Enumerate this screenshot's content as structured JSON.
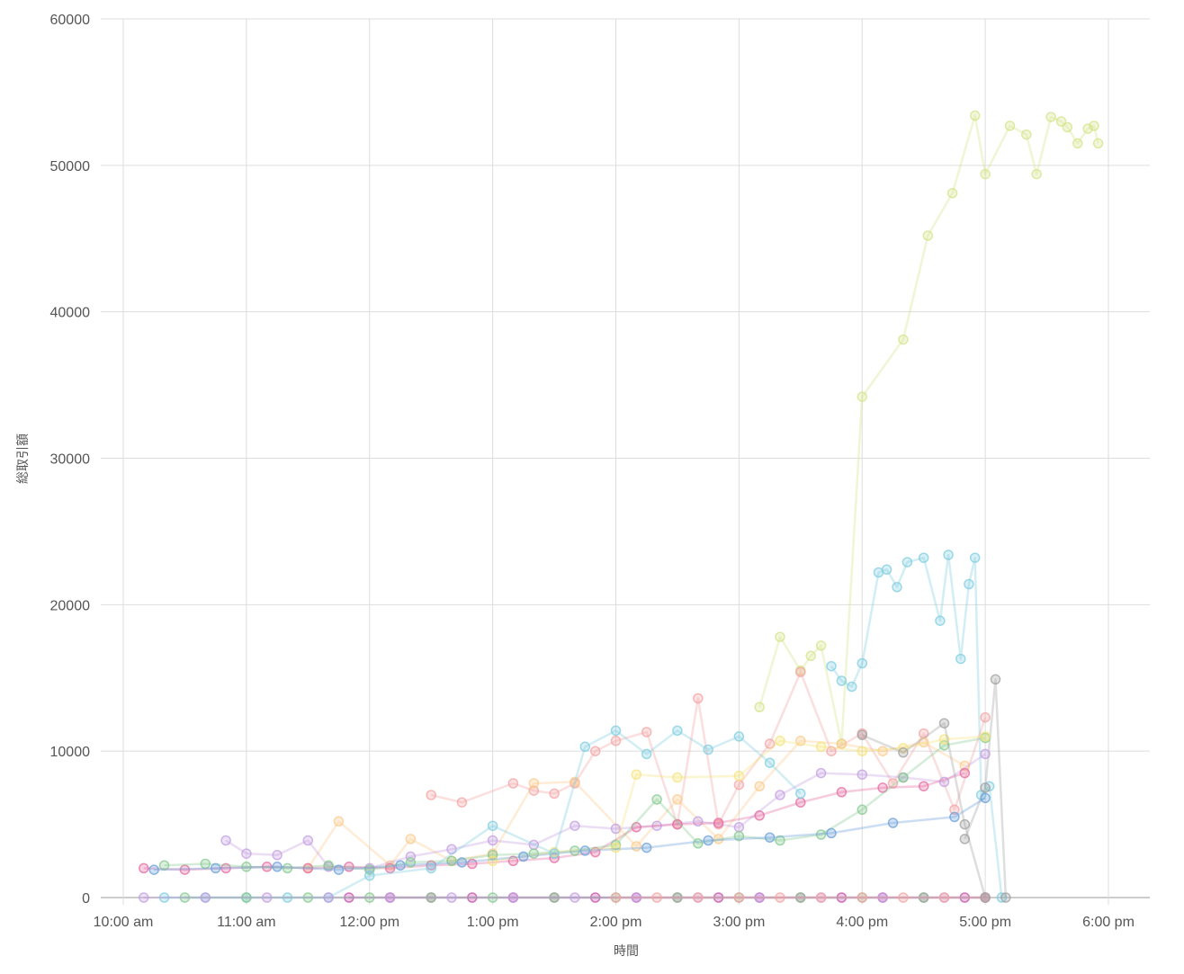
{
  "chart_data": {
    "type": "line",
    "title": "",
    "xlabel": "時間",
    "ylabel": "総取引額",
    "x_is_time_of_day": true,
    "xlim": [
      "10:00",
      "18:00"
    ],
    "ylim": [
      0,
      60000
    ],
    "y_ticks": [
      0,
      10000,
      20000,
      30000,
      40000,
      50000,
      60000
    ],
    "y_tick_labels": [
      "0",
      "10000",
      "20000",
      "30000",
      "40000",
      "50000",
      "60000"
    ],
    "x_ticks": [
      "10:00",
      "11:00",
      "12:00",
      "13:00",
      "14:00",
      "15:00",
      "16:00",
      "17:00",
      "18:00"
    ],
    "x_tick_labels": [
      "10:00 am",
      "11:00 am",
      "12:00 pm",
      "1:00 pm",
      "2:00 pm",
      "3:00 pm",
      "4:00 pm",
      "5:00 pm",
      "6:00 pm"
    ],
    "grid": true,
    "legend": "none",
    "series": [
      {
        "color": "#d4e38a",
        "x": [
          "15:10",
          "15:20",
          "15:30",
          "15:35",
          "15:40",
          "15:50",
          "16:00",
          "16:20",
          "16:32",
          "16:44",
          "16:55",
          "17:00",
          "17:12",
          "17:20",
          "17:25",
          "17:32",
          "17:37",
          "17:40",
          "17:45",
          "17:50",
          "17:53",
          "17:55"
        ],
        "y": [
          13000,
          17800,
          15500,
          16500,
          17200,
          10500,
          34200,
          38100,
          45200,
          48100,
          53400,
          49400,
          52700,
          52100,
          49400,
          53300,
          53000,
          52600,
          51500,
          52500,
          52700,
          51500
        ],
        "y_note_removed": true
      },
      {
        "color": "#7fcde0",
        "x": [
          "15:45",
          "15:50",
          "15:55",
          "16:00",
          "16:08",
          "16:12",
          "16:17",
          "16:22",
          "16:30",
          "16:38",
          "16:42",
          "16:48",
          "16:52",
          "16:55",
          "16:58",
          "17:02",
          "17:08"
        ],
        "y": [
          15800,
          14800,
          14400,
          16000,
          22200,
          22400,
          21200,
          22900,
          23200,
          18900,
          23400,
          16300,
          21400,
          23200,
          7000,
          7600,
          0
        ]
      },
      {
        "color": "#a0a0a0",
        "x": [
          "16:50",
          "17:00",
          "17:05",
          "17:10"
        ],
        "y": [
          4000,
          7500,
          14900,
          0
        ]
      },
      {
        "color": "#f4a3a3",
        "x": [
          "12:30",
          "12:45",
          "13:10",
          "13:20",
          "13:30",
          "13:40",
          "13:50",
          "14:00",
          "14:15",
          "14:30",
          "14:40",
          "14:50",
          "15:00",
          "15:15",
          "15:30",
          "15:45",
          "16:00",
          "16:15",
          "16:30",
          "16:45",
          "17:00"
        ],
        "y": [
          7000,
          6500,
          7800,
          7300,
          7100,
          7800,
          10000,
          10700,
          11300,
          5000,
          13600,
          5000,
          7700,
          10500,
          15400,
          10000,
          11200,
          7800,
          11200,
          6000,
          12300
        ]
      },
      {
        "color": "#fbc98a",
        "x": [
          "11:30",
          "11:45",
          "12:10",
          "12:20",
          "12:40",
          "13:00",
          "13:20",
          "13:40",
          "14:10",
          "14:30",
          "14:50",
          "15:10",
          "15:30",
          "15:50",
          "16:10",
          "16:30",
          "16:50"
        ],
        "y": [
          2000,
          5200,
          2200,
          4000,
          2500,
          3000,
          7800,
          7900,
          3500,
          6700,
          4000,
          7600,
          10700,
          10500,
          10000,
          10600,
          9000
        ]
      },
      {
        "color": "#c29ee0",
        "x": [
          "10:50",
          "11:00",
          "11:15",
          "11:30",
          "11:40",
          "12:00",
          "12:20",
          "12:40",
          "13:00",
          "13:20",
          "13:40",
          "14:00",
          "14:20",
          "14:40",
          "15:00",
          "15:20",
          "15:40",
          "16:00",
          "16:20",
          "16:40",
          "17:00"
        ],
        "y": [
          3900,
          3000,
          2900,
          3900,
          2100,
          2000,
          2800,
          3300,
          3900,
          3600,
          4900,
          4700,
          4900,
          5200,
          4800,
          7000,
          8500,
          8400,
          8200,
          7900,
          9800
        ]
      },
      {
        "color": "#e66aa0",
        "x": [
          "10:10",
          "10:30",
          "10:50",
          "11:10",
          "11:30",
          "11:50",
          "12:10",
          "12:30",
          "12:50",
          "13:10",
          "13:30",
          "13:50",
          "14:10",
          "14:30",
          "14:50",
          "15:10",
          "15:30",
          "15:50",
          "16:10",
          "16:30",
          "16:50"
        ],
        "y": [
          2000,
          1900,
          2000,
          2100,
          2000,
          2100,
          2000,
          2200,
          2300,
          2500,
          2700,
          3100,
          4800,
          5000,
          5100,
          5600,
          6500,
          7200,
          7500,
          7600,
          8500
        ]
      },
      {
        "color": "#85c98f",
        "x": [
          "10:20",
          "10:40",
          "11:00",
          "11:20",
          "11:40",
          "12:00",
          "12:20",
          "12:40",
          "13:00",
          "13:20",
          "13:40",
          "14:00",
          "14:20",
          "14:40",
          "15:00",
          "15:20",
          "15:40",
          "16:00",
          "16:20",
          "16:40",
          "17:00"
        ],
        "y": [
          2200,
          2300,
          2100,
          2000,
          2200,
          1900,
          2400,
          2500,
          2900,
          3000,
          3200,
          3600,
          6700,
          3700,
          4200,
          3900,
          4300,
          6000,
          8200,
          10400,
          10900
        ]
      },
      {
        "color": "#f4e37a",
        "x": [
          "13:00",
          "13:30",
          "14:00",
          "14:10",
          "14:30",
          "15:00",
          "15:20",
          "15:40",
          "16:00",
          "16:20",
          "16:40",
          "17:00"
        ],
        "y": [
          2500,
          3100,
          3400,
          8400,
          8200,
          8300,
          10700,
          10300,
          10000,
          10200,
          10800,
          11000
        ]
      },
      {
        "color": "#6a9fd9",
        "x": [
          "10:15",
          "10:45",
          "11:15",
          "11:45",
          "12:15",
          "12:45",
          "13:15",
          "13:45",
          "14:15",
          "14:45",
          "15:15",
          "15:45",
          "16:15",
          "16:45",
          "17:00"
        ],
        "y": [
          1900,
          2000,
          2100,
          1900,
          2200,
          2400,
          2800,
          3200,
          3400,
          3900,
          4100,
          4400,
          5100,
          5500,
          6800
        ]
      },
      {
        "color": "#c44da8",
        "x": [
          "11:50",
          "12:10",
          "12:30",
          "12:50",
          "13:10",
          "13:30",
          "13:50",
          "14:10",
          "14:30",
          "14:50",
          "15:10",
          "15:30",
          "15:50",
          "16:10",
          "16:30",
          "16:50",
          "17:00"
        ],
        "y": [
          0,
          0,
          0,
          0,
          0,
          0,
          0,
          0,
          0,
          0,
          0,
          0,
          0,
          0,
          0,
          0,
          0
        ]
      },
      {
        "color": "#7fcde0",
        "x": [
          "10:20",
          "10:40",
          "11:00",
          "11:20",
          "11:40",
          "12:00",
          "12:30",
          "13:00",
          "13:30",
          "13:45",
          "14:00",
          "14:15",
          "14:30",
          "14:45",
          "15:00",
          "15:15",
          "15:30"
        ],
        "y": [
          0,
          0,
          0,
          0,
          0,
          1500,
          2000,
          4900,
          3000,
          10300,
          11400,
          9800,
          11400,
          10100,
          11000,
          9200,
          7100
        ]
      },
      {
        "color": "#85c98f",
        "x": [
          "10:30",
          "11:00",
          "11:30",
          "12:00",
          "12:30",
          "13:00",
          "13:30",
          "14:00",
          "14:30",
          "15:00",
          "15:30",
          "16:00",
          "16:30",
          "17:00"
        ],
        "y": [
          0,
          0,
          0,
          0,
          0,
          0,
          0,
          0,
          0,
          0,
          0,
          0,
          0,
          0
        ]
      },
      {
        "color": "#c29ee0",
        "x": [
          "10:10",
          "10:40",
          "11:10",
          "11:40",
          "12:10",
          "12:40",
          "13:10",
          "13:40",
          "14:10",
          "14:40",
          "15:10",
          "15:40",
          "16:10",
          "16:40",
          "17:00"
        ],
        "y": [
          0,
          0,
          0,
          0,
          0,
          0,
          0,
          0,
          0,
          0,
          0,
          0,
          0,
          0,
          0
        ]
      },
      {
        "color": "#f4a3a3",
        "x": [
          "14:00",
          "14:20",
          "14:40",
          "15:00",
          "15:20",
          "15:40",
          "16:00",
          "16:20",
          "16:40",
          "17:00"
        ],
        "y": [
          0,
          0,
          0,
          0,
          0,
          0,
          0,
          0,
          0,
          0
        ]
      },
      {
        "color": "#a0a0a0",
        "x": [
          "16:00",
          "16:20",
          "16:40",
          "16:50",
          "17:00"
        ],
        "y": [
          11100,
          9900,
          11900,
          5000,
          0
        ]
      }
    ]
  }
}
